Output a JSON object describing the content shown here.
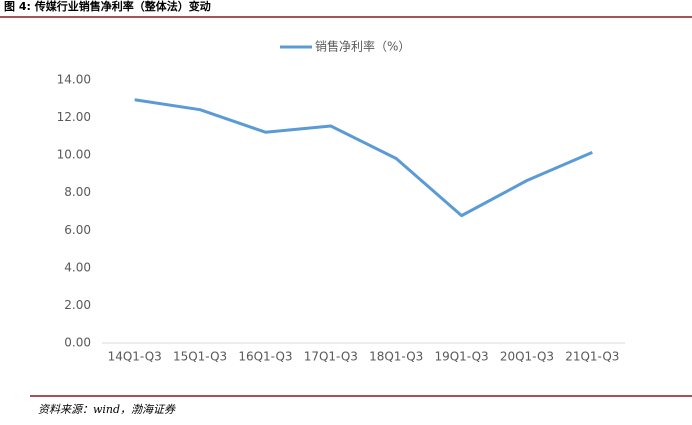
{
  "chart_data": {
    "type": "line",
    "title": "图 4: 传媒行业销售净利率（整体法）变动",
    "source": "资料来源：wind，渤海证券",
    "categories": [
      "14Q1-Q3",
      "15Q1-Q3",
      "16Q1-Q3",
      "17Q1-Q3",
      "18Q1-Q3",
      "19Q1-Q3",
      "20Q1-Q3",
      "21Q1-Q3"
    ],
    "series": [
      {
        "name": "销售净利率（%）",
        "color": "#5b9bd5",
        "values": [
          12.95,
          12.42,
          11.22,
          11.55,
          9.82,
          6.78,
          8.65,
          10.15
        ]
      }
    ],
    "ylim": [
      0,
      14
    ],
    "yticks": [
      {
        "value": 0,
        "label": "0.00"
      },
      {
        "value": 2,
        "label": "2.00"
      },
      {
        "value": 4,
        "label": "4.00"
      },
      {
        "value": 6,
        "label": "6.00"
      },
      {
        "value": 8,
        "label": "8.00"
      },
      {
        "value": 10,
        "label": "10.00"
      },
      {
        "value": 12,
        "label": "12.00"
      },
      {
        "value": 14,
        "label": "14.00"
      }
    ],
    "legend": "top"
  }
}
